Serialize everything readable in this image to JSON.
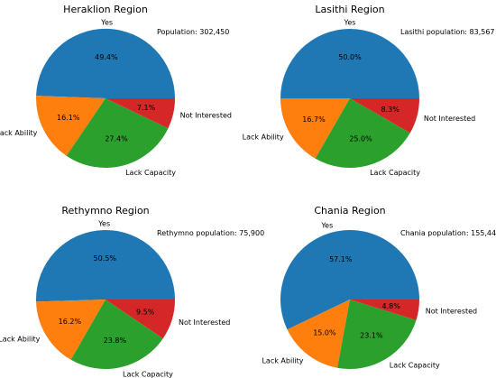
{
  "colors": {
    "Yes": "#1f77b4",
    "Lack Ability": "#ff7f0e",
    "Lack Capacity": "#2ca02c",
    "Not Interested": "#d62728"
  },
  "chart_data": [
    {
      "type": "pie",
      "title": "Heraklion Region",
      "annotation": "Population: 302,450",
      "categories": [
        "Yes",
        "Lack Ability",
        "Lack Capacity",
        "Not Interested"
      ],
      "values": [
        49.4,
        16.1,
        27.4,
        7.1
      ],
      "value_labels": [
        "49.4%",
        "16.1%",
        "27.4%",
        "7.1%"
      ]
    },
    {
      "type": "pie",
      "title": "Lasithi Region",
      "annotation": "Lasithi population: 83,567",
      "categories": [
        "Yes",
        "Lack Ability",
        "Lack Capacity",
        "Not Interested"
      ],
      "values": [
        50.0,
        16.7,
        25.0,
        8.3
      ],
      "value_labels": [
        "50.0%",
        "16.7%",
        "25.0%",
        "8.3%"
      ]
    },
    {
      "type": "pie",
      "title": "Rethymno Region",
      "annotation": "Rethymno population: 75,900",
      "categories": [
        "Yes",
        "Lack Ability",
        "Lack Capacity",
        "Not Interested"
      ],
      "values": [
        50.5,
        16.2,
        23.8,
        9.5
      ],
      "value_labels": [
        "50.5%",
        "16.2%",
        "23.8%",
        "9.5%"
      ]
    },
    {
      "type": "pie",
      "title": "Chania Region",
      "annotation": "Chania population: 155,443",
      "categories": [
        "Yes",
        "Lack Ability",
        "Lack Capacity",
        "Not Interested"
      ],
      "values": [
        57.1,
        15.0,
        23.1,
        4.8
      ],
      "value_labels": [
        "57.1%",
        "15.0%",
        "23.1%",
        "4.8%"
      ]
    }
  ]
}
